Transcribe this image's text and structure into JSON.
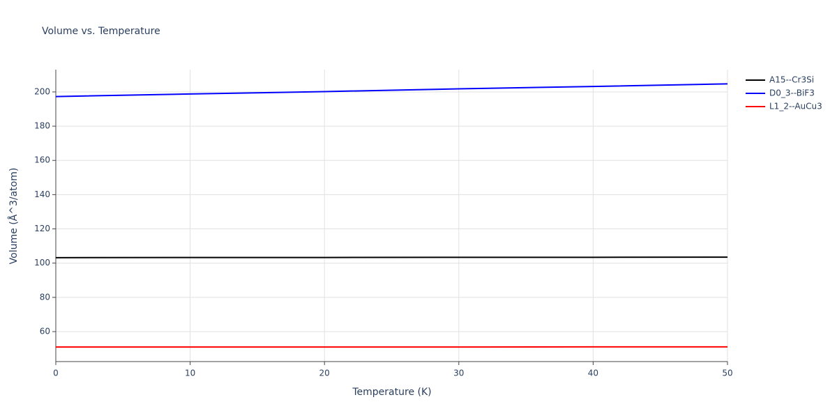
{
  "chart_data": {
    "type": "line",
    "title": "Volume vs. Temperature",
    "x_label": "Temperature (K)",
    "y_label": "Volume (Å^3/atom)",
    "x": [
      0,
      10,
      20,
      30,
      40,
      50
    ],
    "series": [
      {
        "name": "A15--Cr3Si",
        "color": "#000000",
        "values": [
          103.2,
          103.3,
          103.3,
          103.4,
          103.4,
          103.5
        ]
      },
      {
        "name": "D0_3--BiF3",
        "color": "#0000ff",
        "values": [
          197.3,
          198.8,
          200.2,
          201.8,
          203.2,
          204.7
        ]
      },
      {
        "name": "L1_2--AuCu3",
        "color": "#ff0000",
        "values": [
          51.0,
          51.0,
          51.0,
          51.0,
          51.1,
          51.1
        ]
      }
    ],
    "xlim": [
      0,
      50
    ],
    "xticks": [
      0,
      10,
      20,
      30,
      40,
      50
    ],
    "ylim": [
      42.5,
      213
    ],
    "yticks": [
      60,
      80,
      100,
      120,
      140,
      160,
      180,
      200
    ],
    "grid": true,
    "legend_position": "right"
  }
}
